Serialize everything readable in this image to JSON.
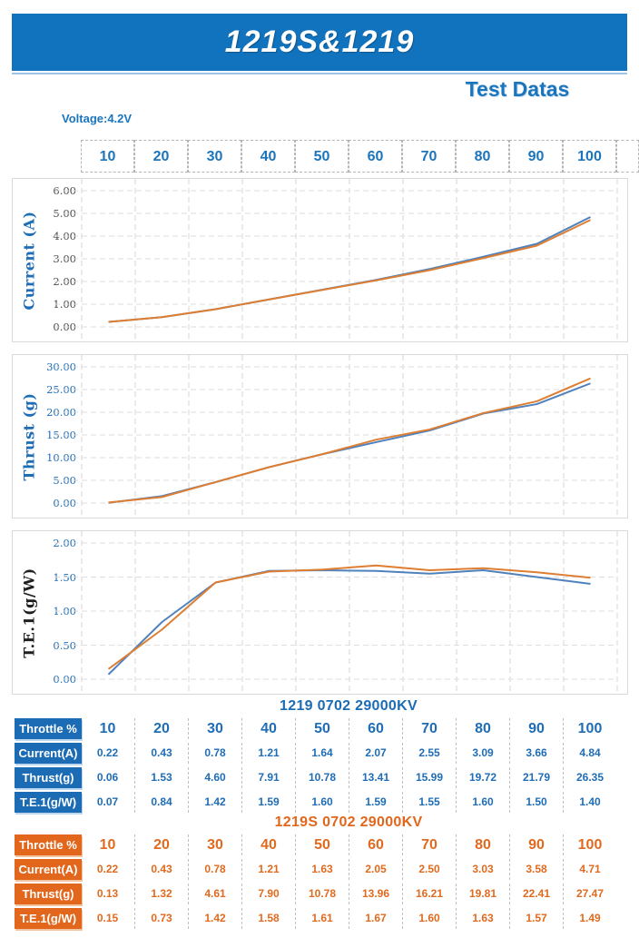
{
  "page": {
    "background": "#ffffff"
  },
  "header": {
    "banner_title": "1219S&1219",
    "banner_color": "#1173bd",
    "subtitle": "Test Datas",
    "voltage_label": "Voltage:4.2V",
    "accent_text_color": "#1b75bc"
  },
  "top_axis": {
    "ticks": [
      "10",
      "20",
      "30",
      "40",
      "50",
      "60",
      "70",
      "80",
      "90",
      "100"
    ]
  },
  "chart_data": [
    {
      "type": "line",
      "name": "current-chart",
      "title": "",
      "xlabel": "Throttle %",
      "ylabel": "Current (A)",
      "x": [
        10,
        20,
        30,
        40,
        50,
        60,
        70,
        80,
        90,
        100
      ],
      "ylim": [
        0,
        6
      ],
      "ytick_step": 1,
      "grid": true,
      "legend": "none",
      "tick_color": "#4a4a4a",
      "ylabel_color": "#1e6db6",
      "series": [
        {
          "name": "1219 0702 29000KV",
          "color": "#4f81bd",
          "values": [
            0.22,
            0.43,
            0.78,
            1.21,
            1.64,
            2.07,
            2.55,
            3.09,
            3.66,
            4.84
          ]
        },
        {
          "name": "1219S 0702 29000KV",
          "color": "#dd7e32",
          "values": [
            0.22,
            0.43,
            0.78,
            1.21,
            1.63,
            2.05,
            2.5,
            3.03,
            3.58,
            4.71
          ]
        }
      ]
    },
    {
      "type": "line",
      "name": "thrust-chart",
      "title": "",
      "xlabel": "Throttle %",
      "ylabel": "Thrust (g)",
      "x": [
        10,
        20,
        30,
        40,
        50,
        60,
        70,
        80,
        90,
        100
      ],
      "ylim": [
        0,
        30
      ],
      "ytick_step": 5,
      "grid": true,
      "legend": "none",
      "tick_color": "#1e6db6",
      "ylabel_color": "#1e6db6",
      "series": [
        {
          "name": "1219 0702 29000KV",
          "color": "#4f81bd",
          "values": [
            0.06,
            1.53,
            4.6,
            7.91,
            10.78,
            13.41,
            15.99,
            19.72,
            21.79,
            26.35
          ]
        },
        {
          "name": "1219S 0702 29000KV",
          "color": "#dd7e32",
          "values": [
            0.13,
            1.32,
            4.61,
            7.9,
            10.78,
            13.96,
            16.21,
            19.81,
            22.41,
            27.47
          ]
        }
      ]
    },
    {
      "type": "line",
      "name": "te1-chart",
      "title": "",
      "xlabel": "Throttle %",
      "ylabel": "T.E.1(g/W)",
      "x": [
        10,
        20,
        30,
        40,
        50,
        60,
        70,
        80,
        90,
        100
      ],
      "ylim": [
        0,
        2
      ],
      "ytick_step": 0.5,
      "grid": true,
      "legend": "none",
      "tick_color": "#1e6db6",
      "ylabel_color": "#1f1f1f",
      "series": [
        {
          "name": "1219 0702 29000KV",
          "color": "#4f81bd",
          "values": [
            0.07,
            0.84,
            1.42,
            1.59,
            1.6,
            1.59,
            1.55,
            1.6,
            1.5,
            1.4
          ]
        },
        {
          "name": "1219S 0702 29000KV",
          "color": "#dd7e32",
          "values": [
            0.15,
            0.73,
            1.42,
            1.58,
            1.61,
            1.67,
            1.6,
            1.63,
            1.57,
            1.49
          ]
        }
      ]
    }
  ],
  "tables": [
    {
      "title": "1219 0702 29000KV",
      "accent": "#1b6cb5",
      "text_color": "#1e6db6",
      "edge_color": "#bcd7ef",
      "rows": [
        {
          "label": "Throttle %",
          "values": [
            "10",
            "20",
            "30",
            "40",
            "50",
            "60",
            "70",
            "80",
            "90",
            "100"
          ],
          "emphasis": true
        },
        {
          "label": "Current(A)",
          "values": [
            "0.22",
            "0.43",
            "0.78",
            "1.21",
            "1.64",
            "2.07",
            "2.55",
            "3.09",
            "3.66",
            "4.84"
          ]
        },
        {
          "label": "Thrust(g)",
          "values": [
            "0.06",
            "1.53",
            "4.60",
            "7.91",
            "10.78",
            "13.41",
            "15.99",
            "19.72",
            "21.79",
            "26.35"
          ]
        },
        {
          "label": "T.E.1(g/W)",
          "values": [
            "0.07",
            "0.84",
            "1.42",
            "1.59",
            "1.60",
            "1.59",
            "1.55",
            "1.60",
            "1.50",
            "1.40"
          ]
        }
      ]
    },
    {
      "title": "1219S 0702 29000KV",
      "accent": "#e2671c",
      "text_color": "#e06a1e",
      "edge_color": "#f2c49f",
      "rows": [
        {
          "label": "Throttle %",
          "values": [
            "10",
            "20",
            "30",
            "40",
            "50",
            "60",
            "70",
            "80",
            "90",
            "100"
          ],
          "emphasis": true
        },
        {
          "label": "Current(A)",
          "values": [
            "0.22",
            "0.43",
            "0.78",
            "1.21",
            "1.63",
            "2.05",
            "2.50",
            "3.03",
            "3.58",
            "4.71"
          ]
        },
        {
          "label": "Thrust(g)",
          "values": [
            "0.13",
            "1.32",
            "4.61",
            "7.90",
            "10.78",
            "13.96",
            "16.21",
            "19.81",
            "22.41",
            "27.47"
          ]
        },
        {
          "label": "T.E.1(g/W)",
          "values": [
            "0.15",
            "0.73",
            "1.42",
            "1.58",
            "1.61",
            "1.67",
            "1.60",
            "1.63",
            "1.57",
            "1.49"
          ]
        }
      ]
    }
  ]
}
